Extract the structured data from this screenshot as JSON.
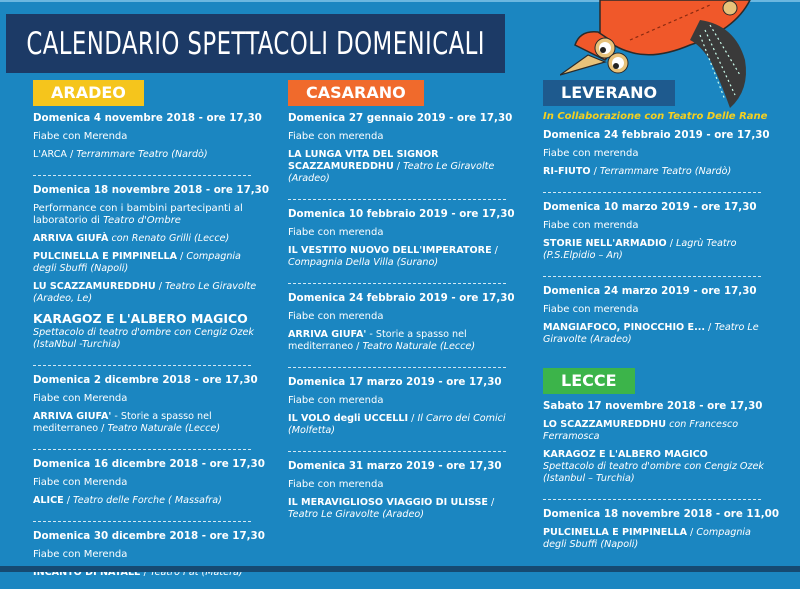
{
  "title": "CALENDARIO SPETTACOLI DOMENICALI",
  "colors": {
    "background": "#1b86c1",
    "title_bar": "#1c3a66",
    "aradeo": "#f5c51c",
    "casarano": "#f06a2c",
    "leverano": "#1e5a8e",
    "lecce": "#3cb44a",
    "collab_text": "#f5d020"
  },
  "sections": [
    {
      "label": "ARADEO",
      "color": "#f5c51c",
      "events": [
        {
          "date": "Domenica 4 novembre 2018 - ore 17,30",
          "note": "Fiabe con Merenda",
          "shows": [
            {
              "title": "",
              "rest": "L'ARCA / ",
              "company": "Terrammare Teatro (Nardò)"
            }
          ]
        },
        {
          "date": "Domenica 18 novembre 2018 -  ore 17,30",
          "note": "Performance con i bambini partecipanti al laboratorio di ",
          "note_italic": "Teatro d'Ombre",
          "shows": [
            {
              "title": "ARRIVA GIUFÀ",
              "rest": " ",
              "company": "con Renato Grilli  (Lecce)"
            },
            {
              "title": "PULCINELLA E PIMPINELLA",
              "rest": " / ",
              "company": "Compagnia degli Sbuffi (Napoli)"
            },
            {
              "title": "LU SCAZZAMUREDDHU",
              "rest": " / ",
              "company": "Teatro Le Giravolte (Aradeo, Le)"
            },
            {
              "title": "KARAGOZ E L'ALBERO MAGICO",
              "rest": "",
              "company": "Spettacolo di teatro d'ombre con Cengiz Ozek (IstaNbul -Turchia)",
              "big": true
            }
          ]
        },
        {
          "date": "Domenica 2 dicembre 2018 - ore 17,30",
          "note": "Fiabe con Merenda",
          "shows": [
            {
              "title": "ARRIVA GIUFA'",
              "rest": " - Storie a spasso nel mediterraneo / ",
              "company": "Teatro Naturale (Lecce)"
            }
          ]
        },
        {
          "date": "Domenica 16 dicembre 2018 - ore 17,30",
          "note": "Fiabe con Merenda",
          "shows": [
            {
              "title": "ALICE",
              "rest": " / ",
              "company": "Teatro delle Forche ( Massafra)"
            }
          ]
        },
        {
          "date": "Domenica 30 dicembre 2018 - ore 17,30",
          "note": "Fiabe con Merenda",
          "shows": [
            {
              "title": "INCANTO DI NATALE",
              "rest": " /  ",
              "company": "Teatro Pat  (Matera)"
            }
          ]
        }
      ]
    },
    {
      "label": "CASARANO",
      "color": "#f06a2c",
      "events": [
        {
          "date": "Domenica 27 gennaio 2019 - ore 17,30",
          "note": "Fiabe con merenda",
          "shows": [
            {
              "title": "LA LUNGA VITA DEL SIGNOR SCAZZAMUREDDHU",
              "rest": " /  ",
              "company": "Teatro Le Giravolte (Aradeo)"
            }
          ]
        },
        {
          "date": "Domenica 10  febbraio 2019 - ore 17,30",
          "note": "Fiabe con merenda",
          "shows": [
            {
              "title": "IL VESTITO NUOVO DELL'IMPERATORE",
              "rest": " / ",
              "company": "Compagnia Della Villa (Surano)"
            }
          ]
        },
        {
          "date": "Domenica  24  febbraio 2019 - ore 17,30",
          "note": "Fiabe con merenda",
          "shows": [
            {
              "title": "ARRIVA GIUFA'",
              "rest": " - Storie a spasso nel mediterraneo /  ",
              "company": "Teatro Naturale (Lecce)"
            }
          ]
        },
        {
          "date": "Domenica  17  marzo  2019  - ore 17,30",
          "note": "Fiabe con merenda",
          "shows": [
            {
              "title": "IL VOLO degli UCCELLI",
              "rest": " /  ",
              "company": "Il Carro dei Comici (Molfetta)"
            }
          ]
        },
        {
          "date": "Domenica  31  marzo  2019 - ore 17,30",
          "note": "Fiabe con merenda",
          "shows": [
            {
              "title": "IL MERAVIGLIOSO VIAGGIO DI ULISSE",
              "rest": " / ",
              "company": "Teatro Le Giravolte (Aradeo)"
            }
          ]
        }
      ]
    },
    {
      "label": "LEVERANO",
      "color": "#1e5a8e",
      "collab": "In Collaborazione con Teatro Delle Rane",
      "events": [
        {
          "date": "Domenica  24  febbraio 2019 - ore 17,30",
          "note": "Fiabe con merenda",
          "shows": [
            {
              "title": "RI-FIUTO",
              "rest": " / ",
              "company": "Terrammare Teatro (Nardò)"
            }
          ]
        },
        {
          "date": "Domenica  10  marzo 2019 - ore 17,30",
          "note": "Fiabe con merenda",
          "shows": [
            {
              "title": "STORIE NELL'ARMADIO",
              "rest": " / ",
              "company": "Lagrù Teatro (P.S.Elpidio – An)"
            }
          ]
        },
        {
          "date": "Domenica 24  marzo 2019 - ore 17,30",
          "note": "Fiabe con merenda",
          "shows": [
            {
              "title": "MANGIAFOCO, PINOCCHIO E...",
              "rest": " /  ",
              "company": "Teatro Le Giravolte (Aradeo)"
            }
          ]
        }
      ]
    },
    {
      "label": "LECCE",
      "color": "#3cb44a",
      "events": [
        {
          "date": "Sabato 17 novembre 2018 - ore 17,30",
          "shows": [
            {
              "title": "LO SCAZZAMUREDDHU",
              "rest": "  ",
              "company": "con Francesco Ferramosca"
            },
            {
              "title": "KARAGOZ E L'ALBERO MAGICO",
              "rest": " ",
              "company": "Spettacolo di teatro d'ombre con Cengiz Ozek (Istanbul – Turchia)",
              "block": true
            }
          ]
        },
        {
          "date": "Domenica  18 novembre 2018 - ore 11,00",
          "shows": [
            {
              "title": "PULCINELLA E PIMPINELLA",
              "rest": " / ",
              "company": "Compagnia degli Sbuffi (Napoli)"
            }
          ]
        }
      ]
    }
  ]
}
